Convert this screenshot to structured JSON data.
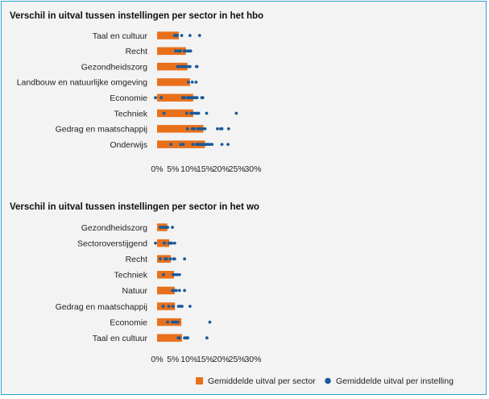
{
  "chart_data": [
    {
      "type": "bar",
      "title": "Verschil in uitval tussen instellingen per sector in het hbo",
      "categories": [
        "Taal en cultuur",
        "Recht",
        "Gezondheidszorg",
        "Landbouw en natuurlijke omgeving",
        "Economie",
        "Techniek",
        "Gedrag en maatschappij",
        "Onderwijs"
      ],
      "values": [
        6.8,
        9.0,
        9.5,
        10.3,
        11.3,
        11.3,
        14.5,
        15.0
      ],
      "points": [
        [
          5.5,
          5.8,
          6.0,
          6.3,
          7.7,
          10.3,
          13.3
        ],
        [
          5.8,
          6.5,
          7.0,
          7.3,
          8.5,
          8.9,
          9.5,
          10.0,
          10.5
        ],
        [
          6.4,
          6.8,
          7.5,
          8.0,
          8.5,
          9.0,
          9.5,
          10.0,
          10.3,
          12.3,
          12.5
        ],
        [
          9.8,
          11.0,
          12.2
        ],
        [
          -0.5,
          1.3,
          8.0,
          8.5,
          9.5,
          10.0,
          10.5,
          11.0,
          11.5,
          12.0,
          12.5,
          14.0,
          14.3
        ],
        [
          2.2,
          9.3,
          10.6,
          11.0,
          11.5,
          12.2,
          12.6,
          13.0,
          15.5,
          24.8
        ],
        [
          9.5,
          11.0,
          11.7,
          12.8,
          13.3,
          13.8,
          14.3,
          15.0,
          18.9,
          19.9,
          20.3,
          22.4
        ],
        [
          4.3,
          7.4,
          8.2,
          11.2,
          12.3,
          12.6,
          13.0,
          13.4,
          14.0,
          14.5,
          15.0,
          15.5,
          16.0,
          16.5,
          17.2,
          20.3,
          22.2
        ]
      ],
      "x_ticks": [
        "0%",
        "5%",
        "10%",
        "15%",
        "20%",
        "25%",
        "30%"
      ],
      "xlim": [
        0,
        30
      ]
    },
    {
      "type": "bar",
      "title": "Verschil in uitval tussen instellingen per sector in het wo",
      "categories": [
        "Gezondheidszorg",
        "Sectoroverstijgend",
        "Recht",
        "Techniek",
        "Natuur",
        "Gedrag en maatschappij",
        "Economie",
        "Taal en cultuur"
      ],
      "values": [
        3.2,
        3.8,
        4.3,
        5.3,
        5.5,
        5.6,
        7.6,
        7.8
      ],
      "points": [
        [
          1.0,
          1.5,
          2.0,
          2.5,
          3.0,
          3.3,
          4.8
        ],
        [
          -0.5,
          2.2,
          2.4,
          3.7,
          4.0,
          4.3,
          4.6,
          5.5
        ],
        [
          1.0,
          2.5,
          3.0,
          4.2,
          5.2,
          5.5,
          8.6
        ],
        [
          2.0,
          5.0,
          5.5,
          6.2,
          7.0
        ],
        [
          4.8,
          5.0,
          5.5,
          6.0,
          7.0,
          8.6
        ],
        [
          1.9,
          3.7,
          5.0,
          6.7,
          7.3,
          7.8,
          10.3
        ],
        [
          3.3,
          4.8,
          5.2,
          5.6,
          6.0,
          6.5,
          16.5
        ],
        [
          6.6,
          7.0,
          8.6,
          9.2,
          9.6,
          15.6
        ]
      ],
      "x_ticks": [
        "0%",
        "5%",
        "10%",
        "15%",
        "20%",
        "25%",
        "30%"
      ],
      "xlim": [
        0,
        30
      ]
    }
  ],
  "legend": {
    "bar_label": "Gemiddelde uitval per sector",
    "dot_label": "Gemiddelde uitval per instelling",
    "bar_color": "#e8701a",
    "dot_color": "#1a5a9a"
  }
}
